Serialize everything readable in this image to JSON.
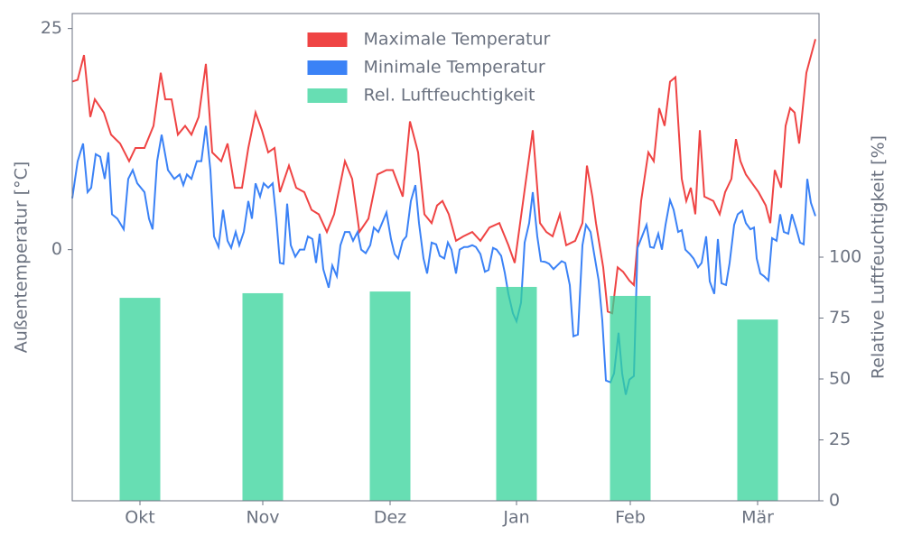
{
  "chart_data": {
    "type": "line",
    "xlim": [
      0,
      827
    ],
    "xticks": [
      {
        "value": 75,
        "label": "Okt"
      },
      {
        "value": 211,
        "label": "Nov"
      },
      {
        "value": 352,
        "label": "Dez"
      },
      {
        "value": 492,
        "label": "Jan"
      },
      {
        "value": 618,
        "label": "Feb"
      },
      {
        "value": 759,
        "label": "Mär"
      }
    ],
    "ylabel": "Außentemperatur [°C]",
    "ylim": [
      -28.4,
      26.7
    ],
    "yticks": [
      0,
      25
    ],
    "y2label": "Relative Luftfeuchtigkeit [%]",
    "y2lim": [
      0,
      200
    ],
    "y2ticks": [
      0,
      25,
      50,
      75,
      100
    ],
    "grid": false,
    "legend": "upper center",
    "series": [
      {
        "name": "Maximale Temperatur",
        "color": "#ef4444",
        "x": [
          0,
          6,
          13,
          20,
          25,
          35,
          43,
          53,
          63,
          70,
          80,
          90,
          98,
          103,
          110,
          117,
          125,
          132,
          140,
          148,
          155,
          165,
          172,
          180,
          188,
          195,
          203,
          210,
          217,
          224,
          230,
          240,
          248,
          257,
          265,
          273,
          282,
          290,
          302,
          310,
          318,
          328,
          338,
          348,
          355,
          366,
          374,
          383,
          390,
          398,
          404,
          410,
          417,
          425,
          433,
          443,
          452,
          462,
          473,
          483,
          490,
          500,
          510,
          518,
          525,
          532,
          540,
          547,
          557,
          565,
          570,
          576,
          580,
          588,
          593,
          598,
          604,
          610,
          617,
          622,
          630,
          638,
          644,
          650,
          656,
          662,
          668,
          675,
          680,
          685,
          690,
          695,
          700,
          710,
          717,
          723,
          730,
          735,
          740,
          746,
          753,
          760,
          768,
          773,
          778,
          785,
          790,
          795,
          800,
          805,
          813,
          823
        ],
        "values": [
          19,
          19.2,
          22,
          15,
          17,
          15.5,
          13,
          12,
          10,
          11.5,
          11.5,
          14,
          20,
          17,
          17,
          13,
          14,
          13,
          15,
          21,
          11,
          10,
          12,
          7,
          7,
          11.5,
          15.5,
          13.5,
          11,
          11.5,
          6.5,
          9.5,
          7,
          6.5,
          4.5,
          4,
          2,
          4,
          10,
          8,
          2,
          3.5,
          8.5,
          9,
          9,
          6,
          14.5,
          11,
          4,
          3,
          5,
          5.5,
          4,
          1,
          1.5,
          2,
          1,
          2.5,
          3,
          0.5,
          -1.5,
          6,
          13.5,
          3,
          2,
          1.5,
          4,
          0.5,
          1,
          3,
          9.5,
          6,
          3,
          -2,
          -7,
          -7.2,
          -2,
          -2.5,
          -3.5,
          -4,
          5.5,
          11,
          10,
          16,
          14,
          19,
          19.5,
          8,
          5.5,
          7,
          4,
          13.5,
          6,
          5.5,
          4,
          6.5,
          8,
          12.5,
          10,
          8.5,
          7.5,
          6.5,
          5,
          3,
          9,
          7,
          14,
          16,
          15.5,
          12,
          20,
          23.8
        ]
      },
      {
        "name": "Minimale Temperatur",
        "color": "#3b82f6",
        "x": [
          0,
          6,
          12,
          17,
          21,
          26,
          31,
          36,
          40,
          44,
          50,
          57,
          62,
          67,
          72,
          80,
          85,
          89,
          94,
          99,
          106,
          113,
          119,
          123,
          127,
          132,
          138,
          143,
          148,
          153,
          157,
          162,
          167,
          172,
          176,
          181,
          185,
          190,
          195,
          199,
          203,
          208,
          212,
          217,
          222,
          226,
          230,
          234,
          238,
          242,
          247,
          252,
          257,
          261,
          266,
          270,
          274,
          278,
          284,
          288,
          293,
          297,
          302,
          307,
          311,
          316,
          320,
          325,
          330,
          334,
          339,
          348,
          353,
          357,
          361,
          366,
          370,
          375,
          380,
          384,
          389,
          393,
          398,
          403,
          407,
          412,
          416,
          420,
          425,
          429,
          434,
          438,
          443,
          447,
          452,
          457,
          461,
          466,
          470,
          475,
          479,
          483,
          488,
          492,
          497,
          501,
          506,
          510,
          515,
          519,
          524,
          528,
          533,
          537,
          542,
          546,
          551,
          555,
          560,
          565,
          569,
          574,
          578,
          583,
          587,
          591,
          596,
          600,
          605,
          609,
          613,
          617,
          622,
          626,
          631,
          636,
          640,
          644,
          649,
          653,
          657,
          662,
          666,
          671,
          675,
          679,
          684,
          688,
          693,
          697,
          702,
          706,
          711,
          715,
          719,
          724,
          728,
          733,
          737,
          742,
          746,
          751,
          755,
          758,
          762,
          766,
          771,
          775,
          780,
          784,
          788,
          793,
          797,
          802,
          806,
          810,
          814,
          818,
          823
        ],
        "values": [
          5.8,
          10,
          12,
          6.5,
          7,
          10.8,
          10.5,
          8,
          11,
          4,
          3.5,
          2.3,
          8,
          9,
          7.5,
          6.5,
          3.5,
          2.3,
          10,
          13,
          9,
          8,
          8.5,
          7.3,
          8.5,
          8,
          10,
          10,
          14,
          9,
          1.5,
          0.3,
          4.5,
          1,
          0.2,
          2,
          0.5,
          2,
          5.5,
          3.5,
          7.5,
          6,
          7.5,
          7,
          7.5,
          3.5,
          -1.5,
          -1.6,
          5.2,
          0.5,
          -0.8,
          0,
          0,
          1.5,
          1.2,
          -1.5,
          1.8,
          -2.2,
          -4.3,
          -1.8,
          -3,
          0.5,
          2,
          2,
          1,
          2,
          0,
          -0.4,
          0.5,
          2.5,
          2,
          4.2,
          1.2,
          -0.5,
          -1,
          1,
          1.5,
          5.5,
          7.3,
          3,
          -1,
          -2.7,
          0.8,
          0.6,
          -0.7,
          -1,
          0.8,
          0,
          -2.7,
          0,
          0.3,
          0.3,
          0.5,
          0.3,
          -0.5,
          -2.5,
          -2.3,
          0.2,
          0,
          -0.7,
          -2.6,
          -5,
          -7.2,
          -8.1,
          -6,
          0.8,
          3,
          6.5,
          1.5,
          -1.3,
          -1.4,
          -1.6,
          -2.2,
          -1.8,
          -1.3,
          -1.5,
          -4,
          -9.8,
          -9.6,
          0.5,
          2.8,
          2,
          -0.5,
          -3.5,
          -8,
          -14.8,
          -15,
          -14,
          -9.4,
          -14,
          -16.4,
          -14.7,
          -14.3,
          0.2,
          1.5,
          2.8,
          0.3,
          0.2,
          1.8,
          0,
          2.8,
          5.6,
          4.5,
          2,
          2.2,
          0,
          -0.5,
          -1,
          -2,
          -1.5,
          1.5,
          -3.6,
          -5,
          1.2,
          -3.8,
          -4,
          -1.5,
          2.8,
          4,
          4.4,
          3,
          2.3,
          2.5,
          -1,
          -2.7,
          -3,
          -3.5,
          1.3,
          1,
          4,
          2,
          1.8,
          4,
          2.3,
          0.8,
          0.6,
          8,
          5.3,
          3.8
        ]
      },
      {
        "name": "Rel. Luftfeuchtigkeit",
        "color": "#34d399",
        "type": "bar",
        "axis": "y2",
        "x": [
          75,
          211,
          352,
          492,
          618,
          759
        ],
        "values": [
          83.3,
          85.2,
          85.9,
          87.8,
          84.1,
          74.4
        ]
      }
    ]
  }
}
